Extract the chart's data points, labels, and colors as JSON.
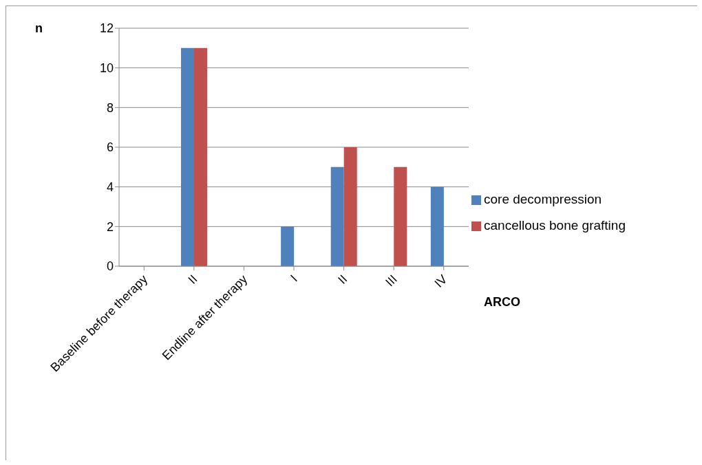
{
  "chart_data": {
    "type": "bar",
    "ylabel": "n",
    "xlabel": "ARCO",
    "categories": [
      "Baseline before therapy",
      "II",
      "Endline after therapy",
      "I",
      "II",
      "III",
      "IV"
    ],
    "series": [
      {
        "name": "core decompression",
        "color": "#4f81bd",
        "values": [
          null,
          11,
          null,
          2,
          5,
          null,
          4
        ]
      },
      {
        "name": "cancellous bone grafting",
        "color": "#c0504d",
        "values": [
          null,
          11,
          null,
          null,
          6,
          5,
          null
        ]
      }
    ],
    "ylim": [
      0,
      12
    ],
    "yticks": [
      0,
      2,
      4,
      6,
      8,
      10,
      12
    ],
    "grid": "y",
    "legend": "right"
  }
}
